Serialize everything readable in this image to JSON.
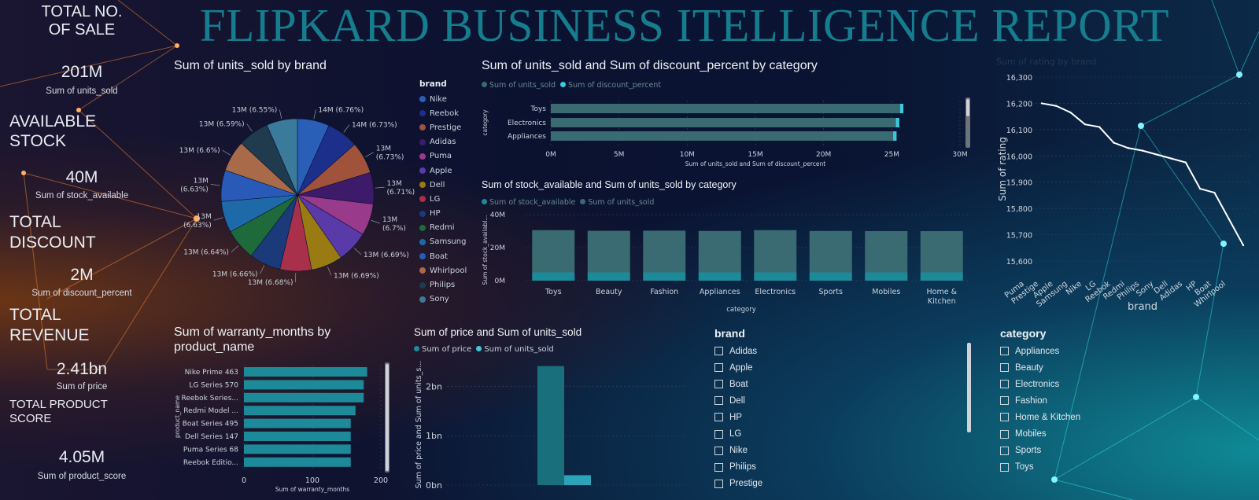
{
  "title": "FLIPKARD BUSINESS ITELLIGENCE REPORT",
  "kpis": [
    {
      "heading": "TOTAL NO. OF SALE",
      "value": "201M",
      "caption": "Sum of units_sold"
    },
    {
      "heading": "AVAILABLE STOCK",
      "value": "40M",
      "caption": "Sum of stock_available"
    },
    {
      "heading": "TOTAL DISCOUNT",
      "value": "2M",
      "caption": "Sum of discount_percent"
    },
    {
      "heading": "TOTAL REVENUE",
      "value": "2.41bn",
      "caption": "Sum of price"
    },
    {
      "heading": "TOTAL PRODUCT SCORE",
      "value": "4.05M",
      "caption": "Sum of product_score"
    }
  ],
  "colors": {
    "teal_bar": "#1d8a99",
    "grey_teal": "#3a6a72",
    "cyan": "#3cc9dc",
    "title": "#167d8e",
    "pie": [
      "#2a5fb8",
      "#1c2f8a",
      "#a0523a",
      "#3e1a6a",
      "#9a3a8a",
      "#5a3aa8",
      "#9a7a12",
      "#a8304a",
      "#1a3a7a",
      "#1e6a3a",
      "#1e6aa8",
      "#2a5ab8",
      "#a86a48",
      "#1f3b4d",
      "#3a7a9a"
    ]
  },
  "slicers": {
    "brand": {
      "title": "brand",
      "items": [
        "Adidas",
        "Apple",
        "Boat",
        "Dell",
        "HP",
        "LG",
        "Nike",
        "Philips",
        "Prestige"
      ]
    },
    "category": {
      "title": "category",
      "items": [
        "Appliances",
        "Beauty",
        "Electronics",
        "Fashion",
        "Home & Kitchen",
        "Mobiles",
        "Sports",
        "Toys"
      ]
    }
  },
  "chart_data": [
    {
      "id": "pie",
      "type": "pie",
      "title": "Sum of units_sold by brand",
      "legend_title": "brand",
      "legend_position": "right",
      "categories": [
        "Nike",
        "Reebok",
        "Prestige",
        "Adidas",
        "Puma",
        "Apple",
        "Dell",
        "LG",
        "HP",
        "Redmi",
        "Samsung",
        "Boat",
        "Whirlpool",
        "Philips",
        "Sony"
      ],
      "values": [
        6.76,
        6.73,
        6.73,
        6.71,
        6.7,
        6.69,
        6.69,
        6.68,
        6.66,
        6.64,
        6.63,
        6.63,
        6.6,
        6.59,
        6.55
      ],
      "labels": [
        "14M (6.76%)",
        "14M (6.73%)",
        "13M (6.73%)",
        "13M (6.71%)",
        "13M (6.7%)",
        "13M (6.69%)",
        "13M (6.69%)",
        "13M (6.68%)",
        "13M (6.66%)",
        "13M (6.64%)",
        "13M (6.63%)",
        "13M (6.63%)",
        "13M (6.6%)",
        "13M (6.59%)",
        "13M (6.55%)"
      ]
    },
    {
      "id": "catdisc",
      "type": "bar",
      "orientation": "horizontal",
      "title": "Sum of units_sold and Sum of discount_percent by category",
      "xlabel": "Sum of units_sold and Sum of discount_percent",
      "ylabel": "category",
      "categories": [
        "Toys",
        "Electronics",
        "Appliances"
      ],
      "series": [
        {
          "name": "Sum of units_sold",
          "values": [
            25.6,
            25.3,
            25.1
          ]
        },
        {
          "name": "Sum of discount_percent",
          "values": [
            0.25,
            0.25,
            0.25
          ]
        }
      ],
      "xlim": [
        0,
        30
      ],
      "xticks": [
        "0M",
        "5M",
        "10M",
        "15M",
        "20M",
        "25M",
        "30M"
      ]
    },
    {
      "id": "stock",
      "type": "bar",
      "stacked": true,
      "title": "Sum of stock_available and Sum of units_sold by category",
      "xlabel": "category",
      "ylabel": "Sum of stock_availabl...",
      "categories": [
        "Toys",
        "Beauty",
        "Fashion",
        "Appliances",
        "Electronics",
        "Sports",
        "Mobiles",
        "Home & Kitchen"
      ],
      "series": [
        {
          "name": "Sum of stock_available",
          "values": [
            5,
            5,
            5,
            5,
            5,
            5,
            5,
            5
          ]
        },
        {
          "name": "Sum of units_sold",
          "values": [
            25.6,
            25.2,
            25.3,
            25.1,
            25.6,
            25.1,
            25.0,
            25.0
          ]
        }
      ],
      "ylim": [
        0,
        40
      ],
      "yticks": [
        "0M",
        "20M",
        "40M"
      ]
    },
    {
      "id": "rating",
      "type": "line",
      "title": "Sum of rating by brand",
      "xlabel": "brand",
      "ylabel": "Sum of rating",
      "categories": [
        "Puma",
        "Prestige",
        "Apple",
        "Samsung",
        "Nike",
        "LG",
        "Reebok",
        "Redmi",
        "Philips",
        "Sony",
        "Dell",
        "Adidas",
        "HP",
        "Boat",
        "Whirlpool"
      ],
      "values": [
        16200,
        16190,
        16165,
        16120,
        16110,
        16050,
        16030,
        16020,
        16005,
        15990,
        15975,
        15875,
        15860,
        15760,
        15660
      ],
      "ylim": [
        15600,
        16300
      ],
      "yticks": [
        "15,600",
        "15,700",
        "15,800",
        "15,900",
        "16,000",
        "16,100",
        "16,200",
        "16,300"
      ]
    },
    {
      "id": "warranty",
      "type": "bar",
      "orientation": "horizontal",
      "title": "Sum of warranty_months by product_name",
      "xlabel": "Sum of warranty_months",
      "ylabel": "product_name",
      "categories": [
        "Nike Prime 463",
        "LG Series 570",
        "Reebok Series...",
        "Redmi Model ...",
        "Boat Series 495",
        "Dell Series 147",
        "Puma Series 68",
        "Reebok Editio..."
      ],
      "values": [
        180,
        175,
        175,
        163,
        156,
        156,
        156,
        156
      ],
      "xlim": [
        0,
        200
      ],
      "xticks": [
        "0",
        "100",
        "200"
      ]
    },
    {
      "id": "price",
      "type": "bar",
      "title": "Sum of price and Sum of units_sold",
      "ylabel": "Sum of price and Sum of units_s...",
      "series": [
        {
          "name": "Sum of price",
          "values": [
            2.41
          ]
        },
        {
          "name": "Sum of units_sold",
          "values": [
            0.2
          ]
        }
      ],
      "ylim": [
        0,
        2.5
      ],
      "yticks": [
        "0bn",
        "1bn",
        "2bn"
      ]
    }
  ]
}
